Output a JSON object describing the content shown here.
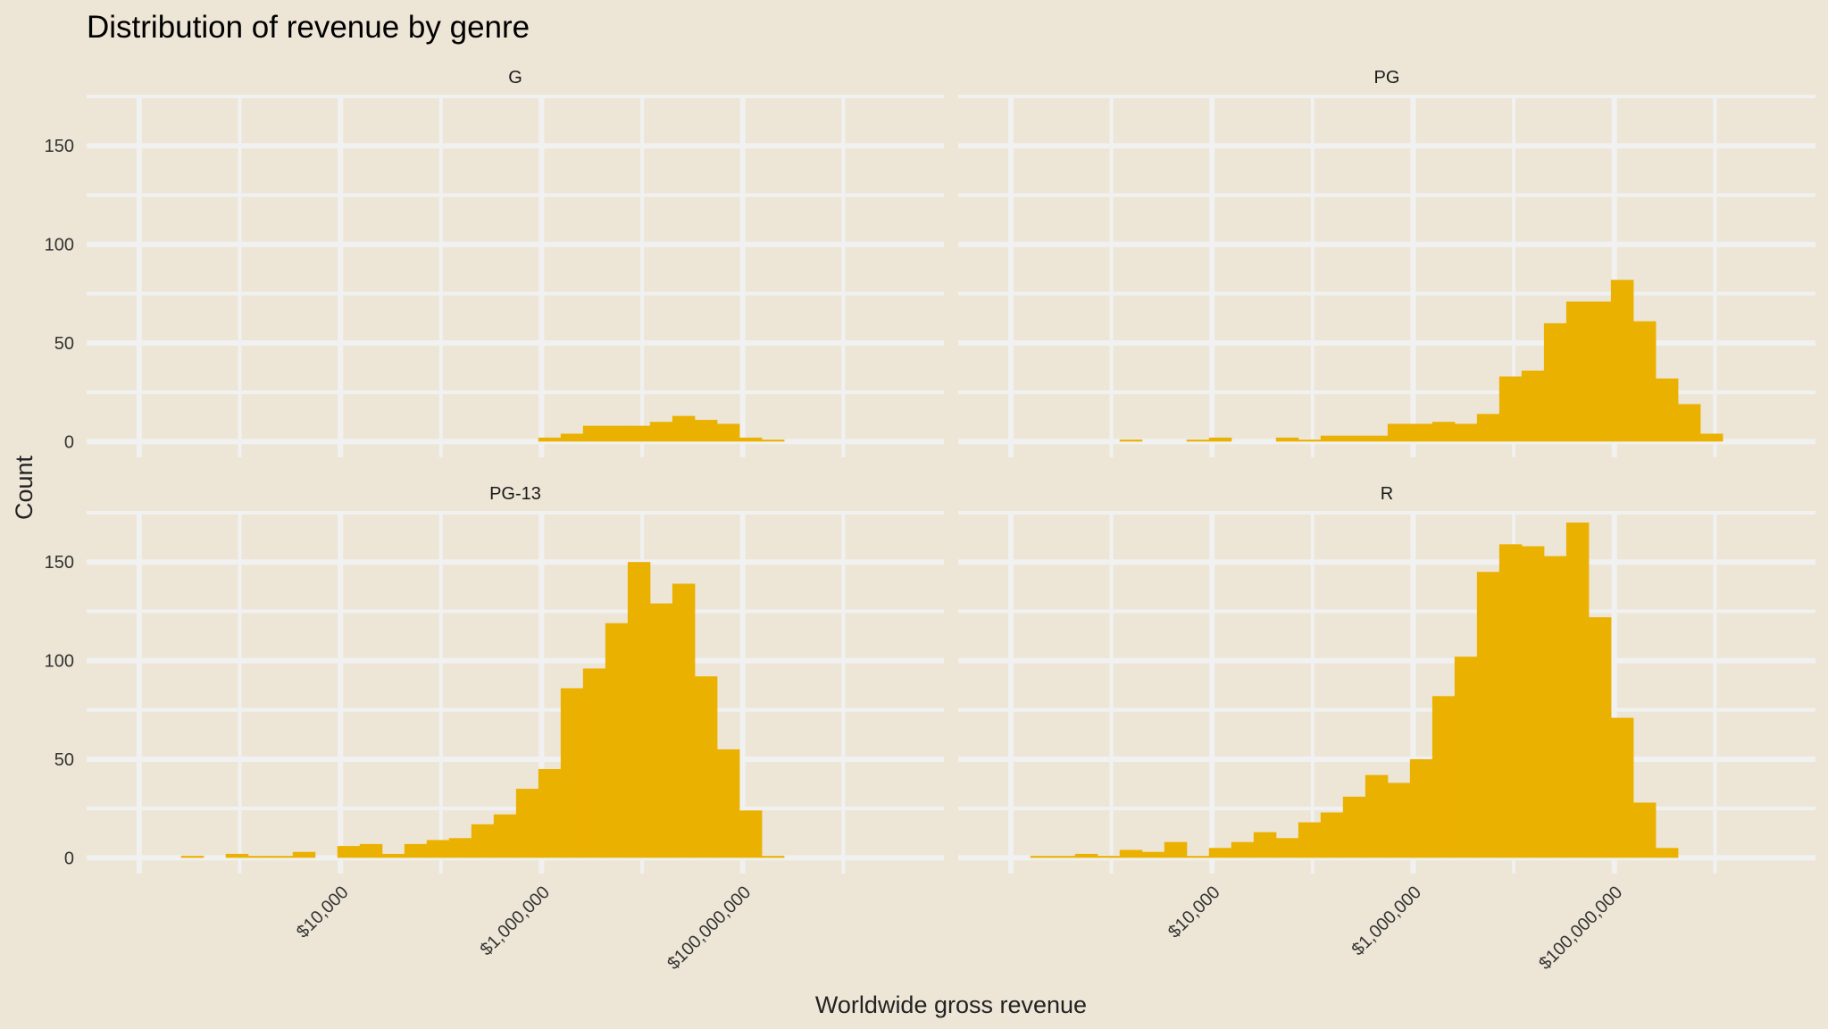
{
  "chart_data": {
    "type": "bar",
    "title": "Distribution of revenue by genre",
    "xlabel": "Worldwide gross revenue",
    "ylabel": "Count",
    "x_scale": "log10",
    "xlim": [
      30,
      10000000000
    ],
    "ylim": [
      -8,
      175
    ],
    "y_ticks": [
      0,
      50,
      100,
      150
    ],
    "x_ticks": [
      10000,
      1000000,
      100000000
    ],
    "x_tick_labels": [
      "$10,000",
      "$1,000,000",
      "$100,000,000"
    ],
    "grid": true,
    "bar_color": "#ebb100",
    "bins": {
      "log10_start": 1.75,
      "log10_width": 0.222,
      "count": 30
    },
    "panels": [
      {
        "name": "G",
        "values": [
          0,
          0,
          0,
          0,
          0,
          0,
          0,
          0,
          0,
          0,
          0,
          0,
          0,
          0,
          0,
          0,
          0,
          0,
          0,
          2,
          4,
          8,
          8,
          8,
          10,
          13,
          11,
          9,
          2,
          1
        ]
      },
      {
        "name": "PG",
        "values": [
          0,
          0,
          0,
          0,
          0,
          0,
          1,
          0,
          0,
          1,
          2,
          0,
          0,
          2,
          1,
          3,
          3,
          3,
          9,
          9,
          10,
          9,
          14,
          33,
          36,
          60,
          71,
          71,
          82,
          61
        ]
      },
      {
        "name": "PG-13",
        "values": [
          0,
          0,
          0,
          1,
          0,
          2,
          1,
          1,
          3,
          0,
          6,
          7,
          2,
          7,
          9,
          10,
          17,
          22,
          35,
          45,
          86,
          96,
          119,
          150,
          129,
          139,
          92,
          55,
          24,
          1
        ]
      },
      {
        "name": "R",
        "values": [
          0,
          0,
          1,
          1,
          2,
          1,
          4,
          3,
          8,
          1,
          5,
          8,
          13,
          10,
          18,
          23,
          31,
          42,
          38,
          50,
          82,
          102,
          145,
          159,
          158,
          153,
          170,
          122,
          71,
          28
        ]
      }
    ],
    "trailing_bins": {
      "PG": [
        32,
        19,
        4
      ],
      "R": [
        5
      ]
    }
  }
}
